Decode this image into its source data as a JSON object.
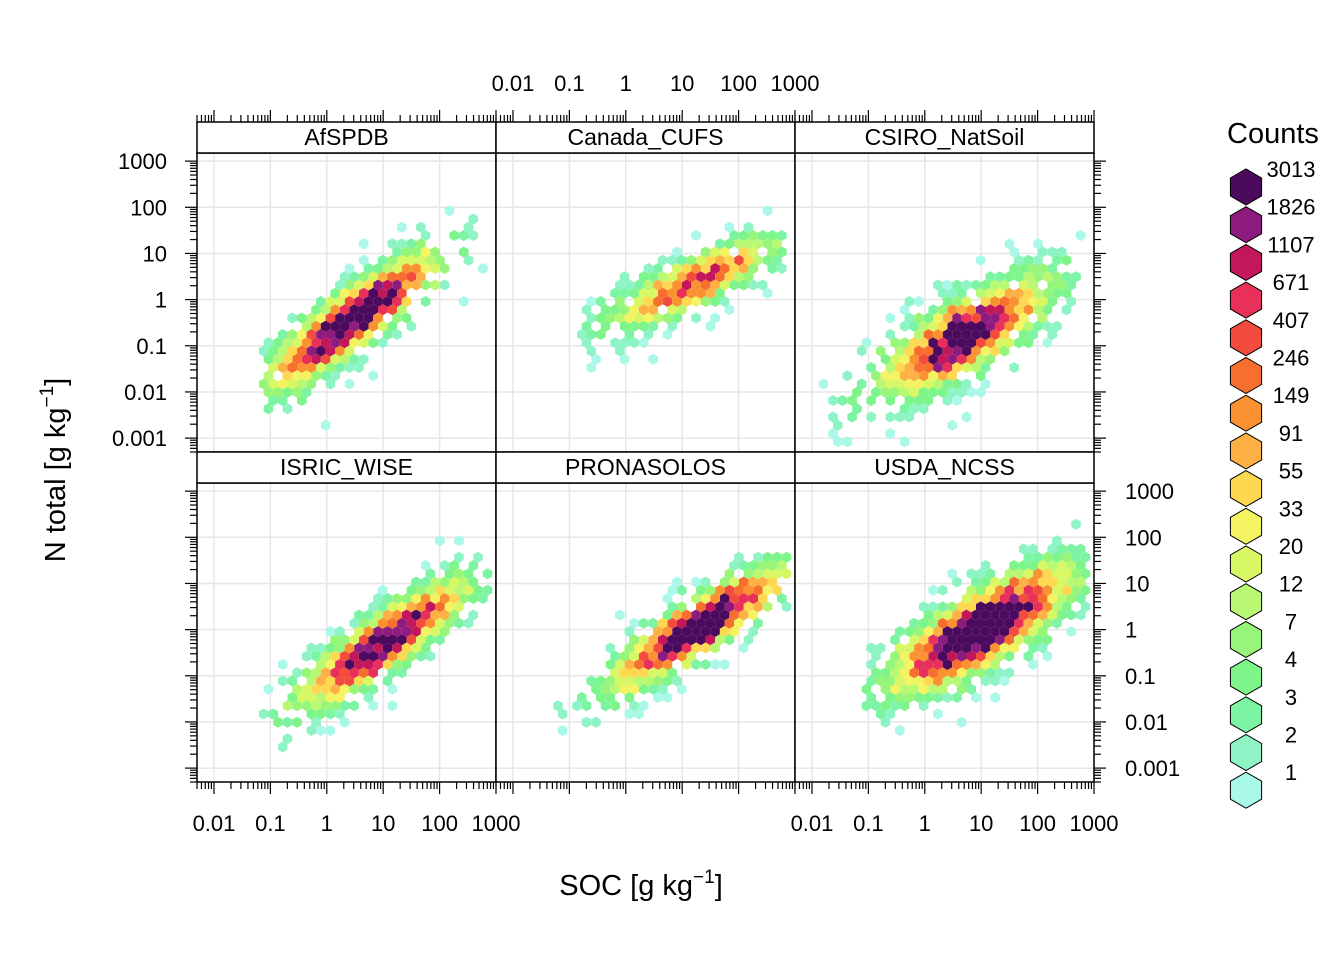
{
  "chart_data": {
    "type": "heatmap",
    "subtype": "hexbin-lattice",
    "xlabel": "SOC [g kg",
    "ylabel": "N total [g kg",
    "unit_superscript": "−1",
    "unit_close": "]",
    "x_scale": "log10",
    "y_scale": "log10",
    "xlim": [
      0.005,
      1000
    ],
    "ylim": [
      0.0005,
      1500
    ],
    "x_ticks": [
      0.01,
      0.1,
      1,
      10,
      100,
      1000
    ],
    "x_tick_labels": [
      "0.01",
      "0.1",
      "1",
      "10",
      "100",
      "1000"
    ],
    "y_ticks": [
      0.001,
      0.01,
      0.1,
      1,
      10,
      100,
      1000
    ],
    "y_tick_labels": [
      "0.001",
      "0.01",
      "0.1",
      "1",
      "10",
      "100",
      "1000"
    ],
    "grid": true,
    "legend_position": "right",
    "legend": {
      "title": "Counts",
      "labels": [
        "3013",
        "1826",
        "1107",
        "671",
        "407",
        "246",
        "149",
        "91",
        "55",
        "33",
        "20",
        "12",
        "7",
        "4",
        "3",
        "2",
        "1"
      ],
      "colors": [
        "#4B0A5E",
        "#8E1C7E",
        "#C2185B",
        "#E8305A",
        "#F34C3E",
        "#F66F2F",
        "#FA9231",
        "#FDB144",
        "#FDD850",
        "#F4F361",
        "#D7F864",
        "#B9F872",
        "#97F579",
        "#7EF58A",
        "#7CF4A4",
        "#8EF4C5",
        "#A9F8E8"
      ]
    },
    "panels": [
      {
        "name": "AfSPDB",
        "n_points": 700,
        "x_range": [
          0.08,
          700
        ],
        "center": [
          0.45,
          -0.45
        ],
        "slope": 0.85,
        "spread": 0.28,
        "peak": 0.9
      },
      {
        "name": "Canada_CUFS",
        "n_points": 430,
        "x_range": [
          0.1,
          700
        ],
        "center": [
          1.2,
          0.35
        ],
        "slope": 0.55,
        "spread": 0.22,
        "peak": 0.6
      },
      {
        "name": "CSIRO_NatSoil",
        "n_points": 800,
        "x_range": [
          0.01,
          700
        ],
        "center": [
          0.7,
          -0.8
        ],
        "slope": 0.65,
        "spread": 0.32,
        "peak": 0.8
      },
      {
        "name": "ISRIC_WISE",
        "n_points": 700,
        "x_range": [
          0.08,
          700
        ],
        "center": [
          1.0,
          -0.3
        ],
        "slope": 0.8,
        "spread": 0.27,
        "peak": 0.8
      },
      {
        "name": "PRONASOLOS",
        "n_points": 700,
        "x_range": [
          0.05,
          700
        ],
        "center": [
          1.3,
          0.05
        ],
        "slope": 0.75,
        "spread": 0.25,
        "peak": 0.9
      },
      {
        "name": "USDA_NCSS",
        "n_points": 1000,
        "x_range": [
          0.1,
          900
        ],
        "center": [
          1.0,
          0.0
        ],
        "slope": 0.65,
        "spread": 0.33,
        "peak": 1.0
      }
    ]
  }
}
